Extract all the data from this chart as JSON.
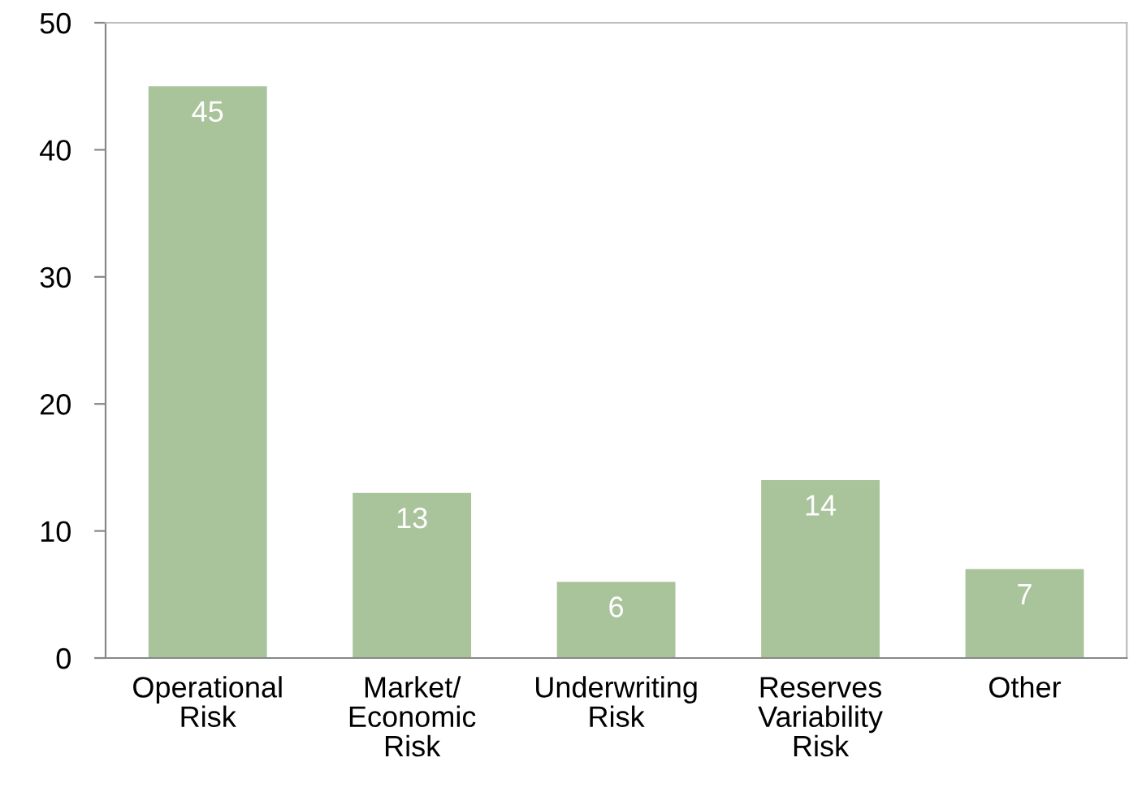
{
  "chart_data": {
    "type": "bar",
    "categories": [
      "Operational\nRisk",
      "Market/\nEconomic\nRisk",
      "Underwriting\nRisk",
      "Reserves\nVariability\nRisk",
      "Other"
    ],
    "values": [
      45,
      13,
      6,
      14,
      7
    ],
    "color": "#a9c39b",
    "ylim": [
      0,
      50
    ],
    "yticks": [
      0,
      10,
      20,
      30,
      40,
      50
    ],
    "data_labels": true,
    "grid": false
  }
}
